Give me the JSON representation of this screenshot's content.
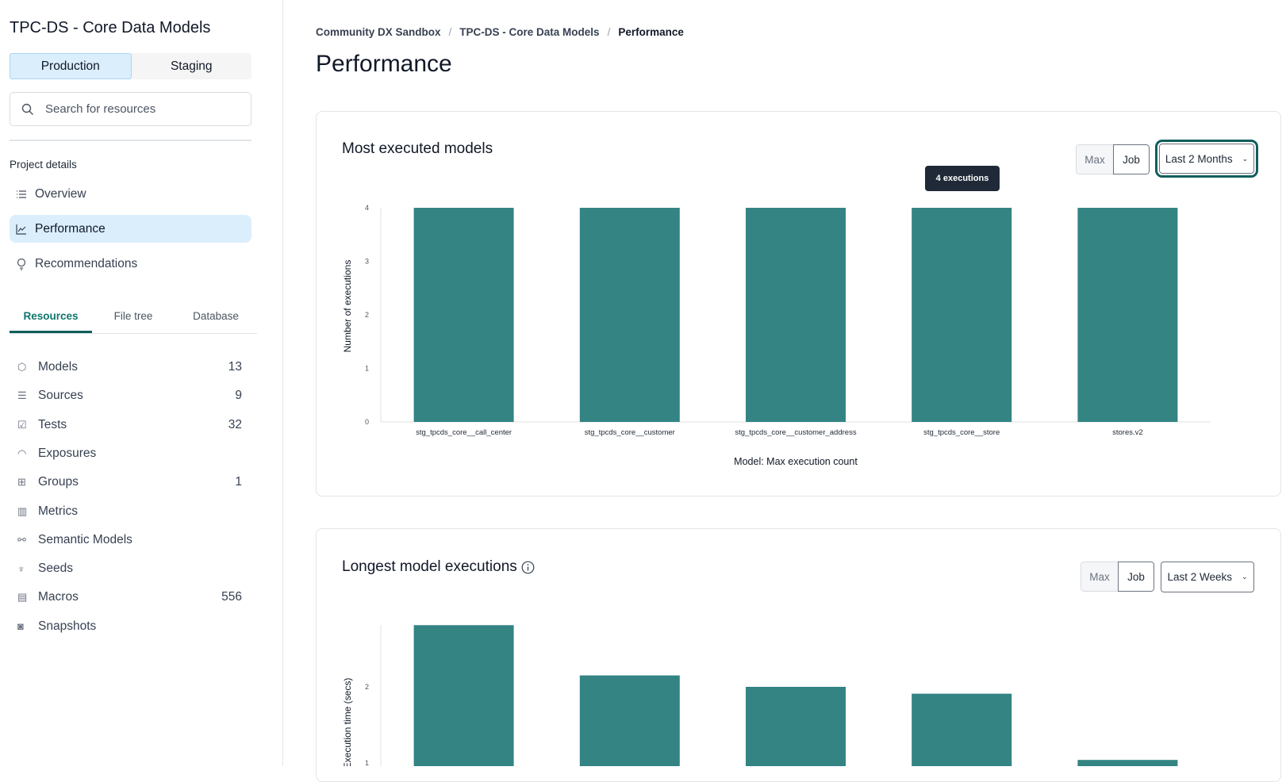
{
  "sidebar": {
    "project_title": "TPC-DS - Core Data Models",
    "environments": [
      "Production",
      "Staging"
    ],
    "active_environment": "Production",
    "search_placeholder": "Search for resources",
    "section_label": "Project details",
    "nav": [
      {
        "label": "Overview",
        "icon": "list-icon"
      },
      {
        "label": "Performance",
        "icon": "line-chart-icon",
        "active": true
      },
      {
        "label": "Recommendations",
        "icon": "lightbulb-icon"
      }
    ],
    "tabs": [
      "Resources",
      "File tree",
      "Database"
    ],
    "active_tab": "Resources",
    "resources": [
      {
        "label": "Models",
        "count": "13",
        "icon": "cube-icon"
      },
      {
        "label": "Sources",
        "count": "9",
        "icon": "database-icon"
      },
      {
        "label": "Tests",
        "count": "32",
        "icon": "clipboard-check-icon"
      },
      {
        "label": "Exposures",
        "count": "",
        "icon": "gauge-icon"
      },
      {
        "label": "Groups",
        "count": "1",
        "icon": "grid-icon"
      },
      {
        "label": "Metrics",
        "count": "",
        "icon": "bar-chart-icon"
      },
      {
        "label": "Semantic Models",
        "count": "",
        "icon": "nodes-icon"
      },
      {
        "label": "Seeds",
        "count": "",
        "icon": "sprout-icon"
      },
      {
        "label": "Macros",
        "count": "556",
        "icon": "file-text-icon"
      },
      {
        "label": "Snapshots",
        "count": "",
        "icon": "camera-icon"
      }
    ]
  },
  "breadcrumb": [
    "Community DX Sandbox",
    "TPC-DS - Core Data Models",
    "Performance"
  ],
  "page_title": "Performance",
  "cards": [
    {
      "title": "Most executed models",
      "toggle": [
        "Max",
        "Job"
      ],
      "range": "Last 2 Months",
      "tooltip": "4 executions"
    },
    {
      "title": "Longest model executions",
      "toggle": [
        "Max",
        "Job"
      ],
      "range": "Last 2 Weeks"
    }
  ],
  "colors": {
    "bar": "#348484",
    "accent": "#0f5f5c"
  },
  "chart_data": [
    {
      "type": "bar",
      "categories": [
        "stg_tpcds_core__call_center",
        "stg_tpcds_core__customer",
        "stg_tpcds_core__customer_address",
        "stg_tpcds_core__store",
        "stores.v2"
      ],
      "values": [
        4,
        4,
        4,
        4,
        4
      ],
      "ylabel": "Number of executions",
      "xlabel": "Model: Max execution count",
      "ylim": [
        0,
        4
      ],
      "yticks": [
        "0",
        "1",
        "2",
        "3",
        "4"
      ],
      "grid": false
    },
    {
      "type": "bar",
      "values": [
        2.81,
        2.15,
        2.0,
        1.91,
        1.04
      ],
      "ylabel": "Execution time (secs)",
      "ylim": [
        0,
        2.81
      ],
      "yticks": [
        "1",
        "2"
      ],
      "grid": false
    }
  ]
}
